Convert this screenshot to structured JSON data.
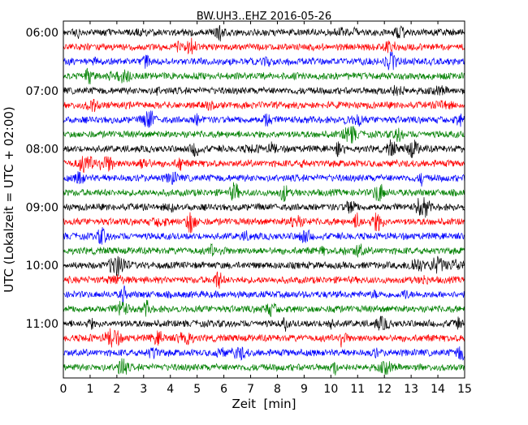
{
  "chart_data": {
    "type": "line",
    "subtype": "helicorder",
    "title": "BW.UH3..EHZ 2016-05-26",
    "xlabel": "Zeit  [min]",
    "ylabel": "UTC (Lokalzeit = UTC + 02:00)",
    "xlim": [
      0,
      15
    ],
    "x_ticks": [
      "0",
      "1",
      "2",
      "3",
      "4",
      "5",
      "6",
      "7",
      "8",
      "9",
      "10",
      "11",
      "12",
      "13",
      "14",
      "15"
    ],
    "y_tick_labels": [
      "06:00",
      "07:00",
      "08:00",
      "09:00",
      "10:00",
      "11:00"
    ],
    "trace_start_utc": "06:00",
    "trace_interval_min": 15,
    "trace_count": 24,
    "trace_colors": [
      "#000000",
      "#ff0000",
      "#0000ff",
      "#008000"
    ],
    "grid": false,
    "legend": "none"
  }
}
